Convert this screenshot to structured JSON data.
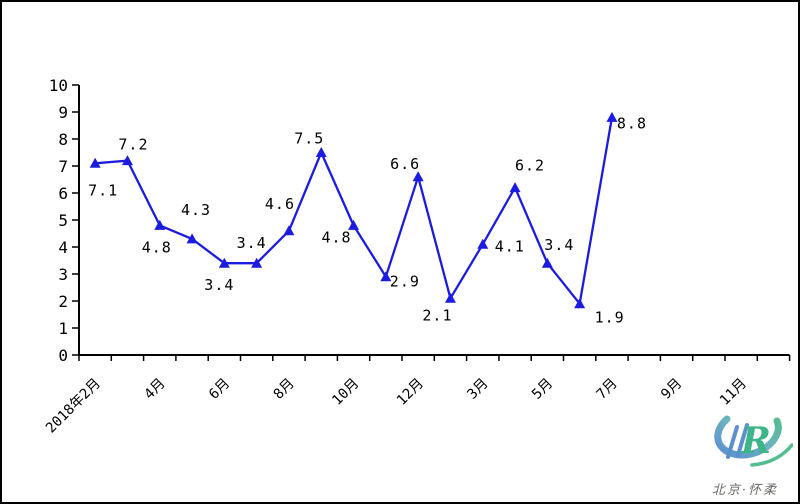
{
  "chart_data": {
    "type": "line",
    "title": "",
    "xlabel": "",
    "ylabel": "",
    "ylim": [
      0,
      10
    ],
    "y_tick_labels": [
      "0",
      "1",
      "2",
      "3",
      "4",
      "5",
      "6",
      "7",
      "8",
      "9",
      "10"
    ],
    "x_tick_labels": [
      "2018年2月",
      "4月",
      "6月",
      "8月",
      "10月",
      "12月",
      "3月",
      "5月",
      "7月",
      "9月",
      "11月"
    ],
    "x_label_category_indices": [
      0,
      2,
      4,
      6,
      8,
      10,
      12,
      14,
      16,
      18,
      20
    ],
    "total_categories": 22,
    "grid": false,
    "legend_position": "none",
    "series": [
      {
        "name": "",
        "values": [
          7.1,
          7.2,
          4.8,
          4.3,
          3.4,
          3.4,
          4.6,
          7.5,
          4.8,
          2.9,
          6.6,
          2.1,
          4.1,
          6.2,
          3.4,
          1.9,
          8.8
        ],
        "data_labels": [
          "7.1",
          "7.2",
          "4.8",
          "4.3",
          "3.4",
          "3.4",
          "4.6",
          "7.5",
          "4.8",
          "2.9",
          "6.6",
          "2.1",
          "4.1",
          "6.2",
          "3.4",
          "1.9",
          "8.8"
        ],
        "label_offsets": [
          [
            8,
            27
          ],
          [
            6,
            -16
          ],
          [
            -3,
            22
          ],
          [
            4,
            -29
          ],
          [
            -5,
            22
          ],
          [
            -5,
            -20
          ],
          [
            -9,
            -27
          ],
          [
            -12,
            -14
          ],
          [
            -17,
            12
          ],
          [
            19,
            5
          ],
          [
            -13,
            -13
          ],
          [
            -13,
            17
          ],
          [
            27,
            2
          ],
          [
            15,
            -22
          ],
          [
            12,
            -18
          ],
          [
            30,
            14
          ],
          [
            20,
            6
          ]
        ]
      }
    ],
    "line_color": "#1c1ce0",
    "marker": "triangle-up",
    "axis_color": "#000000",
    "label_color": "#000000"
  },
  "logo": {
    "caption": "北京·怀柔",
    "letters": "R",
    "swoosh_blue": "#5b8fd0",
    "swoosh_green": "#52bd8f"
  }
}
